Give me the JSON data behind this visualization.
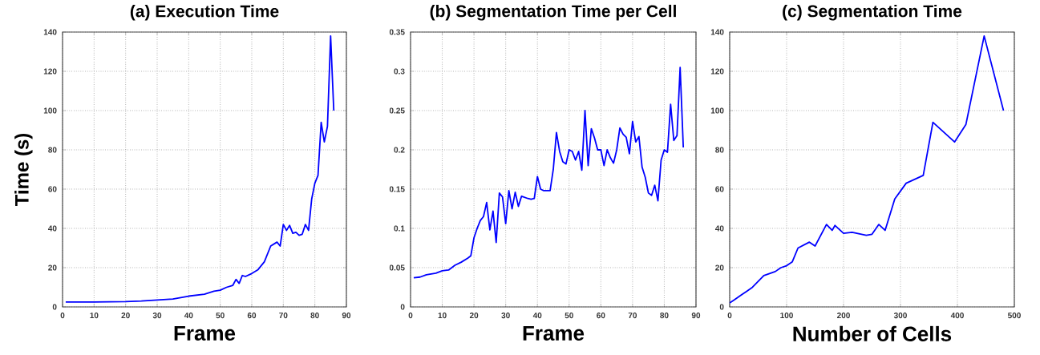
{
  "chart_data": [
    {
      "type": "line",
      "title": "(a)    Execution Time",
      "xlabel": "Frame",
      "ylabel": "Time (s)",
      "color": "#0000ff",
      "grid": true,
      "line_style": "solid",
      "xlim": [
        0,
        90
      ],
      "ylim": [
        0,
        140
      ],
      "xticks": [
        0,
        10,
        20,
        30,
        40,
        50,
        60,
        70,
        80,
        90
      ],
      "yticks": [
        0,
        20,
        40,
        60,
        80,
        100,
        120,
        140
      ],
      "x": [
        1,
        10,
        20,
        25,
        30,
        35,
        40,
        45,
        48,
        50,
        52,
        54,
        55,
        56,
        57,
        58,
        60,
        62,
        64,
        66,
        68,
        69,
        70,
        71,
        72,
        73,
        74,
        75,
        76,
        77,
        78,
        79,
        80,
        81,
        82,
        83,
        84,
        85,
        86
      ],
      "values": [
        2.5,
        2.5,
        2.7,
        3,
        3.5,
        4,
        5.5,
        6.5,
        8,
        8.5,
        10,
        11,
        14,
        12,
        16,
        15.5,
        17,
        19,
        23,
        31,
        33,
        31,
        42,
        39,
        41.5,
        37.5,
        38,
        36.5,
        37,
        42,
        39,
        55,
        63,
        67,
        94,
        84,
        92,
        138,
        100
      ]
    },
    {
      "type": "line",
      "title": "(b) Segmentation Time per Cell",
      "xlabel": "Frame",
      "color": "#0000ff",
      "grid": true,
      "line_style": "solid",
      "xlim": [
        0,
        90
      ],
      "ylim": [
        0,
        0.35
      ],
      "xticks": [
        0,
        10,
        20,
        30,
        40,
        50,
        60,
        70,
        80,
        90
      ],
      "yticks": [
        0,
        0.05,
        0.1,
        0.15,
        0.2,
        0.25,
        0.3,
        0.35
      ],
      "x": [
        1,
        3,
        5,
        8,
        10,
        12,
        14,
        16,
        18,
        19,
        20,
        21,
        22,
        23,
        24,
        25,
        26,
        27,
        28,
        29,
        30,
        31,
        32,
        33,
        34,
        35,
        37,
        38,
        39,
        40,
        41,
        42,
        43,
        44,
        45,
        46,
        47,
        48,
        49,
        50,
        51,
        52,
        53,
        54,
        55,
        56,
        57,
        58,
        59,
        60,
        61,
        62,
        63,
        64,
        65,
        66,
        67,
        68,
        69,
        70,
        71,
        72,
        73,
        74,
        75,
        76,
        77,
        78,
        79,
        80,
        81,
        82,
        83,
        84,
        85,
        86
      ],
      "values": [
        0.037,
        0.038,
        0.041,
        0.043,
        0.046,
        0.047,
        0.053,
        0.057,
        0.062,
        0.065,
        0.088,
        0.1,
        0.11,
        0.115,
        0.133,
        0.098,
        0.122,
        0.082,
        0.145,
        0.14,
        0.106,
        0.148,
        0.125,
        0.146,
        0.128,
        0.141,
        0.138,
        0.137,
        0.138,
        0.166,
        0.15,
        0.148,
        0.148,
        0.148,
        0.175,
        0.222,
        0.198,
        0.185,
        0.182,
        0.2,
        0.198,
        0.187,
        0.198,
        0.174,
        0.25,
        0.18,
        0.227,
        0.215,
        0.2,
        0.2,
        0.18,
        0.2,
        0.19,
        0.183,
        0.2,
        0.228,
        0.22,
        0.216,
        0.195,
        0.236,
        0.21,
        0.217,
        0.178,
        0.165,
        0.145,
        0.142,
        0.155,
        0.135,
        0.187,
        0.2,
        0.197,
        0.258,
        0.212,
        0.218,
        0.305,
        0.203
      ]
    },
    {
      "type": "line",
      "title": "(c) Segmentation Time",
      "xlabel": "Number of Cells",
      "color": "#0000ff",
      "grid": true,
      "line_style": "solid",
      "xlim": [
        0,
        500
      ],
      "ylim": [
        0,
        140
      ],
      "xticks": [
        0,
        100,
        200,
        300,
        400,
        500
      ],
      "yticks": [
        0,
        20,
        40,
        60,
        80,
        100,
        120,
        140
      ],
      "x": [
        0,
        10,
        20,
        30,
        40,
        50,
        60,
        70,
        80,
        90,
        100,
        110,
        120,
        140,
        150,
        170,
        180,
        185,
        200,
        215,
        240,
        250,
        262,
        273,
        290,
        310,
        340,
        357,
        395,
        415,
        447,
        481
      ],
      "values": [
        2,
        4,
        6,
        8,
        10,
        13,
        16,
        17,
        18,
        20,
        21,
        23,
        30,
        33,
        31,
        42,
        39,
        41.5,
        37.5,
        38,
        36.5,
        37,
        42,
        39,
        55,
        63,
        67,
        94,
        84,
        93,
        138,
        100
      ]
    }
  ]
}
